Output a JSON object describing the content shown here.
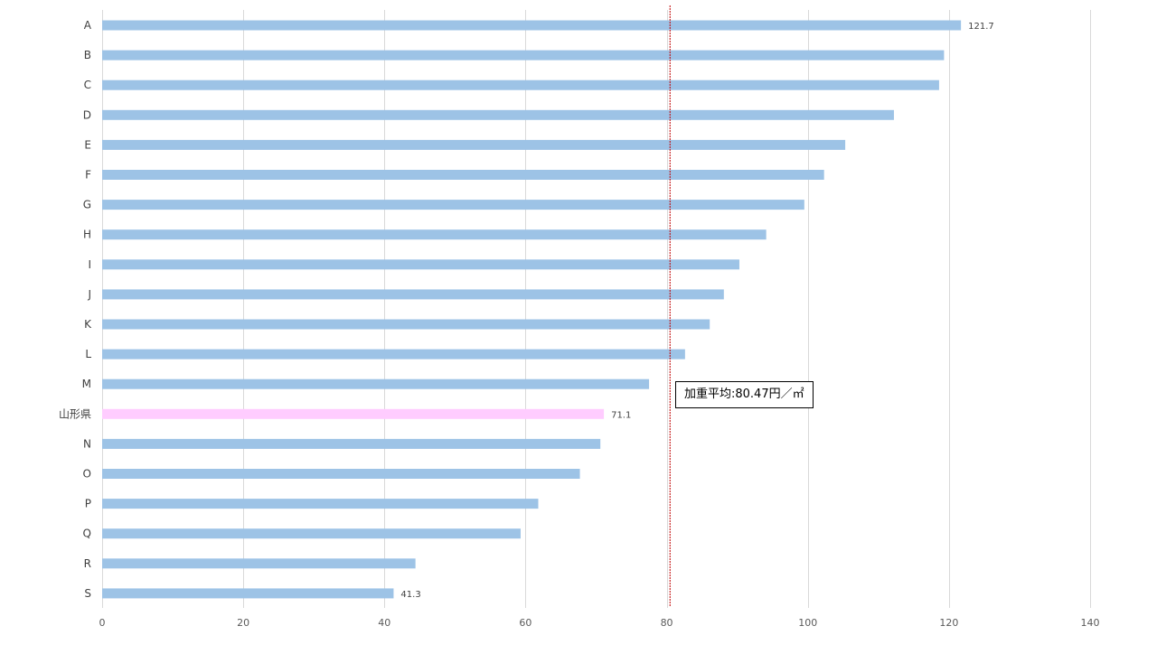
{
  "chart_data": {
    "type": "bar",
    "orientation": "horizontal",
    "categories": [
      "A",
      "B",
      "C",
      "D",
      "E",
      "F",
      "G",
      "H",
      "I",
      "J",
      "K",
      "L",
      "M",
      "山形県",
      "N",
      "O",
      "P",
      "Q",
      "R",
      "S"
    ],
    "values": [
      121.7,
      119.3,
      118.6,
      112.2,
      105.3,
      102.3,
      99.5,
      94.1,
      90.3,
      88.1,
      86.1,
      82.6,
      77.5,
      71.1,
      70.6,
      67.7,
      61.8,
      59.3,
      44.4,
      41.3
    ],
    "data_labels": {
      "A": "121.7",
      "山形県": "71.1",
      "S": "41.3"
    },
    "highlight_category": "山形県",
    "xlim": [
      0,
      140
    ],
    "x_ticks": [
      0,
      20,
      40,
      60,
      80,
      100,
      120,
      140
    ],
    "reference_line": {
      "value": 80.47,
      "label": "加重平均:80.47円／㎡",
      "color": "#c00000"
    },
    "colors": {
      "bar": "#9dc3e6",
      "highlight": "#ffccff"
    },
    "grid": true,
    "legend": false
  }
}
